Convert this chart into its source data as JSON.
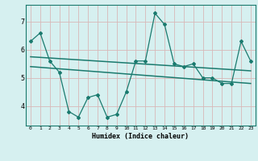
{
  "xlabel": "Humidex (Indice chaleur)",
  "background_color": "#d6f0f0",
  "grid_color": "#c0d8d8",
  "line_color": "#1a7a6e",
  "xlim": [
    -0.5,
    23.5
  ],
  "ylim": [
    3.3,
    7.6
  ],
  "yticks": [
    4,
    5,
    6,
    7
  ],
  "xticks": [
    0,
    1,
    2,
    3,
    4,
    5,
    6,
    7,
    8,
    9,
    10,
    11,
    12,
    13,
    14,
    15,
    16,
    17,
    18,
    19,
    20,
    21,
    22,
    23
  ],
  "series1_x": [
    0,
    1,
    2,
    3,
    4,
    5,
    6,
    7,
    8,
    9,
    10,
    11,
    12,
    13,
    14,
    15,
    16,
    17,
    18,
    19,
    20,
    21,
    22,
    23
  ],
  "series1_y": [
    6.3,
    6.6,
    5.6,
    5.2,
    3.8,
    3.6,
    4.3,
    4.4,
    3.6,
    3.7,
    4.5,
    5.6,
    5.6,
    7.3,
    6.9,
    5.5,
    5.4,
    5.5,
    5.0,
    5.0,
    4.8,
    4.8,
    6.3,
    5.6
  ],
  "trend1_x": [
    0,
    23
  ],
  "trend1_y": [
    5.75,
    5.25
  ],
  "trend2_x": [
    0,
    23
  ],
  "trend2_y": [
    5.4,
    4.8
  ]
}
